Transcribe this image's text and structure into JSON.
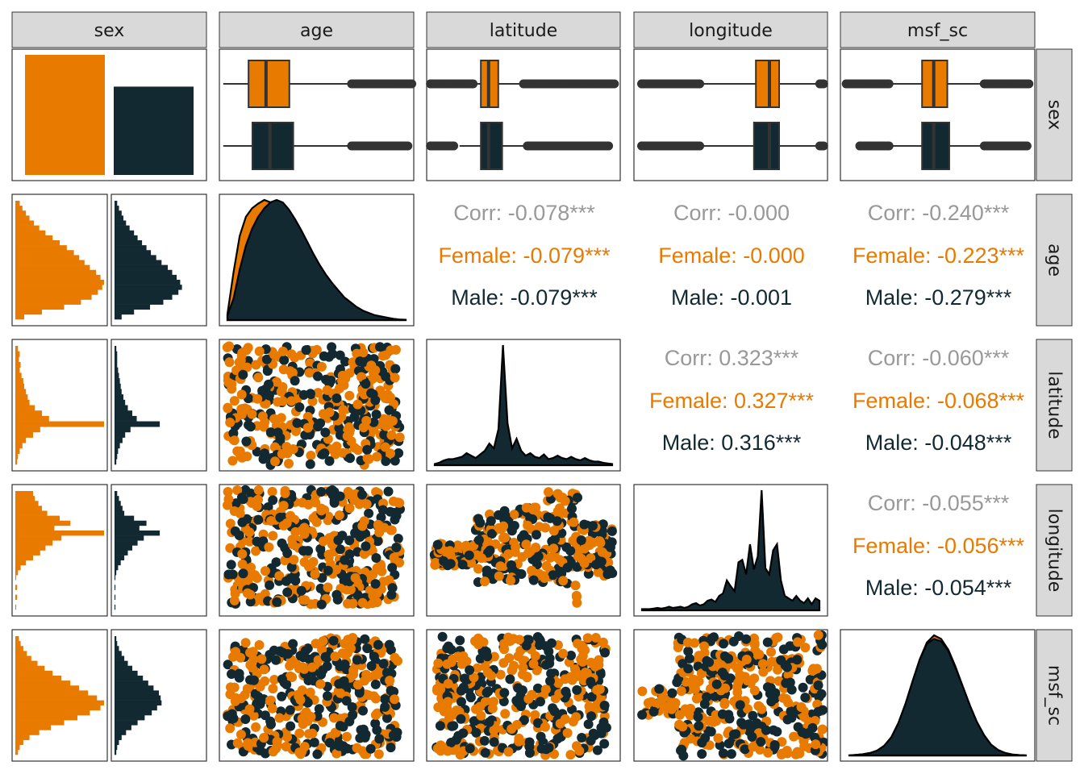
{
  "chart_data": {
    "type": "pairs",
    "variables": [
      "sex",
      "age",
      "latitude",
      "longitude",
      "msf_sc"
    ],
    "groups": [
      {
        "name": "Female",
        "color": "#E87A00"
      },
      {
        "name": "Male",
        "color": "#132932"
      }
    ],
    "colors": {
      "overall": "#999999",
      "box_line": "#333333",
      "strip_fill": "#d9d9d9",
      "panel_border": "#333333"
    },
    "sex_counts": {
      "Female": 0.68,
      "Male": 0.5
    },
    "boxplots": {
      "age": {
        "Female": {
          "whisker_low": 0.02,
          "q1": 0.15,
          "median": 0.24,
          "q3": 0.36,
          "whisker_high": 0.66,
          "outlier_start": 0.68,
          "outlier_end": 0.99
        },
        "Male": {
          "whisker_low": 0.02,
          "q1": 0.17,
          "median": 0.26,
          "q3": 0.38,
          "whisker_high": 0.66,
          "outlier_start": 0.68,
          "outlier_end": 0.97
        }
      },
      "latitude": {
        "Female": {
          "outlier_low_start": 0.02,
          "outlier_low_end": 0.24,
          "whisker_low": 0.25,
          "q1": 0.28,
          "median": 0.32,
          "q3": 0.37,
          "whisker_high": 0.48,
          "outlier_start": 0.5,
          "outlier_end": 0.97
        },
        "Male": {
          "outlier_low_start": 0.02,
          "outlier_low_end": 0.14,
          "whisker_low": 0.17,
          "q1": 0.28,
          "median": 0.32,
          "q3": 0.39,
          "whisker_high": 0.5,
          "outlier_start": 0.52,
          "outlier_end": 0.94
        }
      },
      "longitude": {
        "Female": {
          "outlier_low_start": 0.04,
          "outlier_low_end": 0.34,
          "whisker_low": 0.36,
          "q1": 0.63,
          "median": 0.7,
          "q3": 0.75,
          "whisker_high": 0.95,
          "outlier_start": 0.96,
          "outlier_end": 0.98
        },
        "Male": {
          "outlier_low_start": 0.04,
          "outlier_low_end": 0.34,
          "whisker_low": 0.36,
          "q1": 0.62,
          "median": 0.7,
          "q3": 0.75,
          "whisker_high": 0.95,
          "outlier_start": 0.96,
          "outlier_end": 0.98
        }
      },
      "msf_sc": {
        "Female": {
          "outlier_low_start": 0.03,
          "outlier_low_end": 0.25,
          "whisker_low": 0.27,
          "q1": 0.42,
          "median": 0.48,
          "q3": 0.55,
          "whisker_high": 0.72,
          "outlier_start": 0.74,
          "outlier_end": 0.97
        },
        "Male": {
          "outlier_low_start": 0.1,
          "outlier_low_end": 0.25,
          "whisker_low": 0.27,
          "q1": 0.42,
          "median": 0.48,
          "q3": 0.56,
          "whisker_high": 0.72,
          "outlier_start": 0.74,
          "outlier_end": 0.96
        }
      }
    },
    "histograms": {
      "age": {
        "Female": [
          0.05,
          0.08,
          0.12,
          0.16,
          0.21,
          0.27,
          0.34,
          0.42,
          0.5,
          0.58,
          0.66,
          0.72,
          0.78,
          0.84,
          0.91,
          0.96,
          1.0,
          0.98,
          0.93,
          0.86,
          0.74,
          0.55,
          0.3,
          0.1
        ],
        "Male": [
          0.03,
          0.05,
          0.08,
          0.1,
          0.13,
          0.17,
          0.22,
          0.26,
          0.31,
          0.36,
          0.41,
          0.47,
          0.53,
          0.6,
          0.65,
          0.7,
          0.74,
          0.76,
          0.72,
          0.65,
          0.55,
          0.4,
          0.22,
          0.08
        ]
      },
      "latitude": {
        "Female": [
          0.03,
          0.05,
          0.04,
          0.06,
          0.05,
          0.07,
          0.09,
          0.1,
          0.12,
          0.14,
          0.16,
          0.22,
          0.3,
          0.38,
          1.0,
          0.28,
          0.2,
          0.12,
          0.08,
          0.05,
          0.03,
          0.02
        ],
        "Male": [
          0.02,
          0.03,
          0.03,
          0.03,
          0.04,
          0.05,
          0.06,
          0.07,
          0.08,
          0.1,
          0.12,
          0.15,
          0.2,
          0.25,
          0.51,
          0.18,
          0.12,
          0.09,
          0.06,
          0.04,
          0.03,
          0.02
        ]
      },
      "longitude": {
        "Female": [
          0.2,
          0.22,
          0.26,
          0.3,
          0.36,
          0.5,
          0.62,
          0.44,
          1.0,
          0.52,
          0.42,
          0.34,
          0.28,
          0.2,
          0.12,
          0.06,
          0.03,
          0.01,
          0.0,
          0.02,
          0.0,
          0.02,
          0.0,
          0.01
        ],
        "Male": [
          0.03,
          0.05,
          0.07,
          0.09,
          0.11,
          0.22,
          0.36,
          0.28,
          0.51,
          0.33,
          0.26,
          0.2,
          0.15,
          0.11,
          0.07,
          0.04,
          0.02,
          0.01,
          0.0,
          0.01,
          0.0,
          0.01,
          0.0,
          0.01
        ]
      },
      "msf_sc": {
        "Female": [
          0.04,
          0.06,
          0.09,
          0.13,
          0.18,
          0.25,
          0.33,
          0.42,
          0.52,
          0.62,
          0.72,
          0.82,
          0.92,
          1.0,
          0.96,
          0.84,
          0.7,
          0.55,
          0.4,
          0.27,
          0.16,
          0.09,
          0.05,
          0.03
        ],
        "Male": [
          0.02,
          0.03,
          0.05,
          0.08,
          0.11,
          0.15,
          0.2,
          0.26,
          0.32,
          0.38,
          0.44,
          0.5,
          0.52,
          0.53,
          0.48,
          0.42,
          0.34,
          0.26,
          0.19,
          0.13,
          0.08,
          0.05,
          0.03,
          0.02
        ]
      }
    },
    "densities": {
      "age": {
        "Female": [
          0.05,
          0.4,
          0.7,
          0.86,
          0.93,
          0.97,
          1.0,
          0.98,
          0.94,
          0.88,
          0.8,
          0.71,
          0.62,
          0.53,
          0.44,
          0.36,
          0.29,
          0.23,
          0.18,
          0.14,
          0.11,
          0.08,
          0.06,
          0.04,
          0.03,
          0.02,
          0.015,
          0.01,
          0.005,
          0.003
        ],
        "Male": [
          0.04,
          0.18,
          0.42,
          0.62,
          0.76,
          0.86,
          0.93,
          0.98,
          1.0,
          0.98,
          0.92,
          0.84,
          0.75,
          0.65,
          0.55,
          0.46,
          0.38,
          0.31,
          0.25,
          0.19,
          0.15,
          0.11,
          0.08,
          0.06,
          0.04,
          0.03,
          0.02,
          0.01,
          0.005,
          0.002
        ]
      },
      "latitude": [
        0.01,
        0.02,
        0.04,
        0.05,
        0.05,
        0.06,
        0.07,
        0.1,
        0.08,
        0.06,
        0.09,
        0.12,
        0.18,
        0.14,
        0.3,
        1.0,
        0.35,
        0.14,
        0.22,
        0.12,
        0.08,
        0.1,
        0.07,
        0.06,
        0.09,
        0.05,
        0.06,
        0.08,
        0.06,
        0.05,
        0.07,
        0.05,
        0.04,
        0.06,
        0.04,
        0.03,
        0.03,
        0.02,
        0.015,
        0.01
      ],
      "longitude": [
        0.01,
        0.01,
        0.01,
        0.015,
        0.02,
        0.015,
        0.02,
        0.03,
        0.02,
        0.025,
        0.03,
        0.02,
        0.03,
        0.05,
        0.06,
        0.04,
        0.05,
        0.08,
        0.09,
        0.07,
        0.12,
        0.14,
        0.25,
        0.2,
        0.16,
        0.4,
        0.42,
        0.3,
        0.55,
        0.34,
        0.45,
        1.0,
        0.35,
        0.3,
        0.5,
        0.55,
        0.25,
        0.12,
        0.1,
        0.08,
        0.12,
        0.08,
        0.06,
        0.1,
        0.05,
        0.1,
        0.08
      ],
      "msf_sc": {
        "Female": [
          0.0,
          0.005,
          0.01,
          0.02,
          0.04,
          0.08,
          0.15,
          0.27,
          0.43,
          0.62,
          0.8,
          0.94,
          1.0,
          0.97,
          0.88,
          0.74,
          0.58,
          0.42,
          0.28,
          0.17,
          0.09,
          0.045,
          0.02,
          0.008,
          0.003,
          0.0
        ],
        "Male": [
          0.0,
          0.005,
          0.01,
          0.02,
          0.04,
          0.08,
          0.15,
          0.27,
          0.43,
          0.62,
          0.8,
          0.93,
          0.97,
          0.95,
          0.87,
          0.73,
          0.58,
          0.42,
          0.28,
          0.17,
          0.09,
          0.045,
          0.02,
          0.008,
          0.003,
          0.0
        ]
      }
    },
    "correlations": [
      {
        "row": "age",
        "col": "latitude",
        "overall": "Corr: -0.078***",
        "female": "Female: -0.079***",
        "male": "Male: -0.079***"
      },
      {
        "row": "age",
        "col": "longitude",
        "overall": "Corr: -0.000",
        "female": "Female: -0.000",
        "male": "Male: -0.001"
      },
      {
        "row": "age",
        "col": "msf_sc",
        "overall": "Corr: -0.240***",
        "female": "Female: -0.223***",
        "male": "Male: -0.279***"
      },
      {
        "row": "latitude",
        "col": "longitude",
        "overall": "Corr: 0.323***",
        "female": "Female: 0.327***",
        "male": "Male: 0.316***"
      },
      {
        "row": "latitude",
        "col": "msf_sc",
        "overall": "Corr: -0.060***",
        "female": "Female: -0.068***",
        "male": "Male: -0.048***"
      },
      {
        "row": "longitude",
        "col": "msf_sc",
        "overall": "Corr: -0.055***",
        "female": "Female: -0.056***",
        "male": "Male: -0.054***"
      }
    ],
    "legend": "none",
    "grid": false
  }
}
